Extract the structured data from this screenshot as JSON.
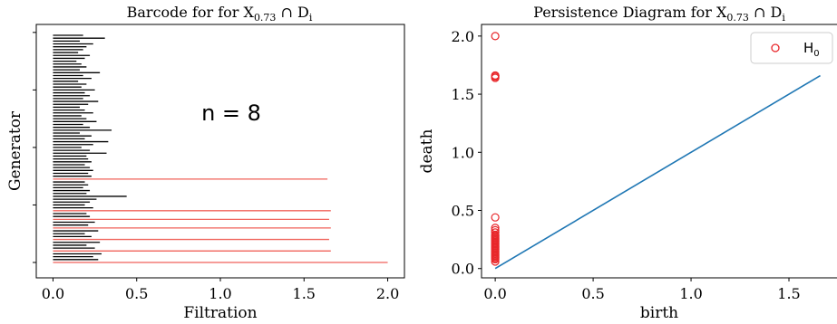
{
  "colors": {
    "short_bar": "#000000",
    "long_bar": "#f0625a",
    "points": "#e8262a",
    "diagonal": "#1f77b4"
  },
  "chart_data": [
    {
      "type": "barcode",
      "title": "Barcode for for X",
      "title_subscript": "0.73",
      "title_suffix": " ∩ D",
      "title_suffix_subscript": "i",
      "xlabel": "Filtration",
      "ylabel": "Generator",
      "xlim": [
        -0.1,
        2.1
      ],
      "x_ticks": [
        "0.0",
        "0.5",
        "1.0",
        "1.5",
        "2.0"
      ],
      "x_tick_values": [
        0.0,
        0.5,
        1.0,
        1.5,
        2.0
      ],
      "annotation": "n = 8",
      "bar_color_rule": "red for the 8 longest-lived generators, black otherwise",
      "intervals": [
        [
          0,
          2.0
        ],
        [
          0,
          0.27
        ],
        [
          0,
          0.24
        ],
        [
          0,
          0.29
        ],
        [
          0,
          1.66
        ],
        [
          0,
          0.25
        ],
        [
          0,
          0.2
        ],
        [
          0,
          0.28
        ],
        [
          0,
          1.65
        ],
        [
          0,
          0.23
        ],
        [
          0,
          0.19
        ],
        [
          0,
          0.27
        ],
        [
          0,
          1.66
        ],
        [
          0,
          0.21
        ],
        [
          0,
          0.25
        ],
        [
          0,
          1.65
        ],
        [
          0,
          0.22
        ],
        [
          0,
          0.2
        ],
        [
          0,
          1.66
        ],
        [
          0,
          0.24
        ],
        [
          0,
          0.19
        ],
        [
          0,
          0.22
        ],
        [
          0,
          0.26
        ],
        [
          0,
          0.44
        ],
        [
          0,
          0.2
        ],
        [
          0,
          0.22
        ],
        [
          0,
          0.18
        ],
        [
          0,
          0.21
        ],
        [
          0,
          0.19
        ],
        [
          0,
          1.64
        ],
        [
          0,
          0.23
        ],
        [
          0,
          0.21
        ],
        [
          0,
          0.24
        ],
        [
          0,
          0.22
        ],
        [
          0,
          0.19
        ],
        [
          0,
          0.23
        ],
        [
          0,
          0.21
        ],
        [
          0,
          0.2
        ],
        [
          0,
          0.32
        ],
        [
          0,
          0.22
        ],
        [
          0,
          0.17
        ],
        [
          0,
          0.24
        ],
        [
          0,
          0.33
        ],
        [
          0,
          0.19
        ],
        [
          0,
          0.23
        ],
        [
          0,
          0.16
        ],
        [
          0,
          0.35
        ],
        [
          0,
          0.22
        ],
        [
          0,
          0.18
        ],
        [
          0,
          0.26
        ],
        [
          0,
          0.2
        ],
        [
          0,
          0.17
        ],
        [
          0,
          0.24
        ],
        [
          0,
          0.19
        ],
        [
          0,
          0.16
        ],
        [
          0,
          0.21
        ],
        [
          0,
          0.27
        ],
        [
          0,
          0.18
        ],
        [
          0,
          0.22
        ],
        [
          0,
          0.19
        ],
        [
          0,
          0.25
        ],
        [
          0,
          0.17
        ],
        [
          0,
          0.2
        ],
        [
          0,
          0.15
        ],
        [
          0,
          0.23
        ],
        [
          0,
          0.18
        ],
        [
          0,
          0.28
        ],
        [
          0,
          0.16
        ],
        [
          0,
          0.2
        ],
        [
          0,
          0.17
        ],
        [
          0,
          0.14
        ],
        [
          0,
          0.19
        ],
        [
          0,
          0.22
        ],
        [
          0,
          0.15
        ],
        [
          0,
          0.18
        ],
        [
          0,
          0.2
        ],
        [
          0,
          0.24
        ],
        [
          0,
          0.16
        ],
        [
          0,
          0.31
        ],
        [
          0,
          0.18
        ]
      ]
    },
    {
      "type": "scatter",
      "title": "Persistence Diagram for X",
      "title_subscript": "0.73",
      "title_suffix": " ∩ D",
      "title_suffix_subscript": "i",
      "xlabel": "birth",
      "ylabel": "death",
      "xlim": [
        -0.07,
        1.75
      ],
      "ylim": [
        -0.08,
        2.1
      ],
      "x_ticks": [
        "0.0",
        "0.5",
        "1.0",
        "1.5"
      ],
      "x_tick_values": [
        0.0,
        0.5,
        1.0,
        1.5
      ],
      "y_ticks": [
        "0.0",
        "0.5",
        "1.0",
        "1.5",
        "2.0"
      ],
      "y_tick_values": [
        0.0,
        0.5,
        1.0,
        1.5,
        2.0
      ],
      "legend": {
        "label": "H",
        "label_subscript": "0",
        "placement": "top-right"
      },
      "diagonal": {
        "from": [
          0,
          0
        ],
        "to": [
          1.66,
          1.66
        ]
      },
      "points": [
        [
          0,
          2.0
        ],
        [
          0,
          1.66
        ],
        [
          0,
          1.65
        ],
        [
          0,
          1.66
        ],
        [
          0,
          1.64
        ],
        [
          0,
          0.44
        ],
        [
          0,
          0.35
        ],
        [
          0,
          0.33
        ],
        [
          0,
          0.31
        ],
        [
          0,
          0.29
        ],
        [
          0,
          0.28
        ],
        [
          0,
          0.27
        ],
        [
          0,
          0.26
        ],
        [
          0,
          0.25
        ],
        [
          0,
          0.24
        ],
        [
          0,
          0.23
        ],
        [
          0,
          0.22
        ],
        [
          0,
          0.21
        ],
        [
          0,
          0.2
        ],
        [
          0,
          0.19
        ],
        [
          0,
          0.18
        ],
        [
          0,
          0.17
        ],
        [
          0,
          0.16
        ],
        [
          0,
          0.15
        ],
        [
          0,
          0.14
        ],
        [
          0,
          0.13
        ],
        [
          0,
          0.12
        ],
        [
          0,
          0.11
        ],
        [
          0,
          0.1
        ],
        [
          0,
          0.09
        ],
        [
          0,
          0.08
        ],
        [
          0,
          0.06
        ]
      ]
    }
  ]
}
